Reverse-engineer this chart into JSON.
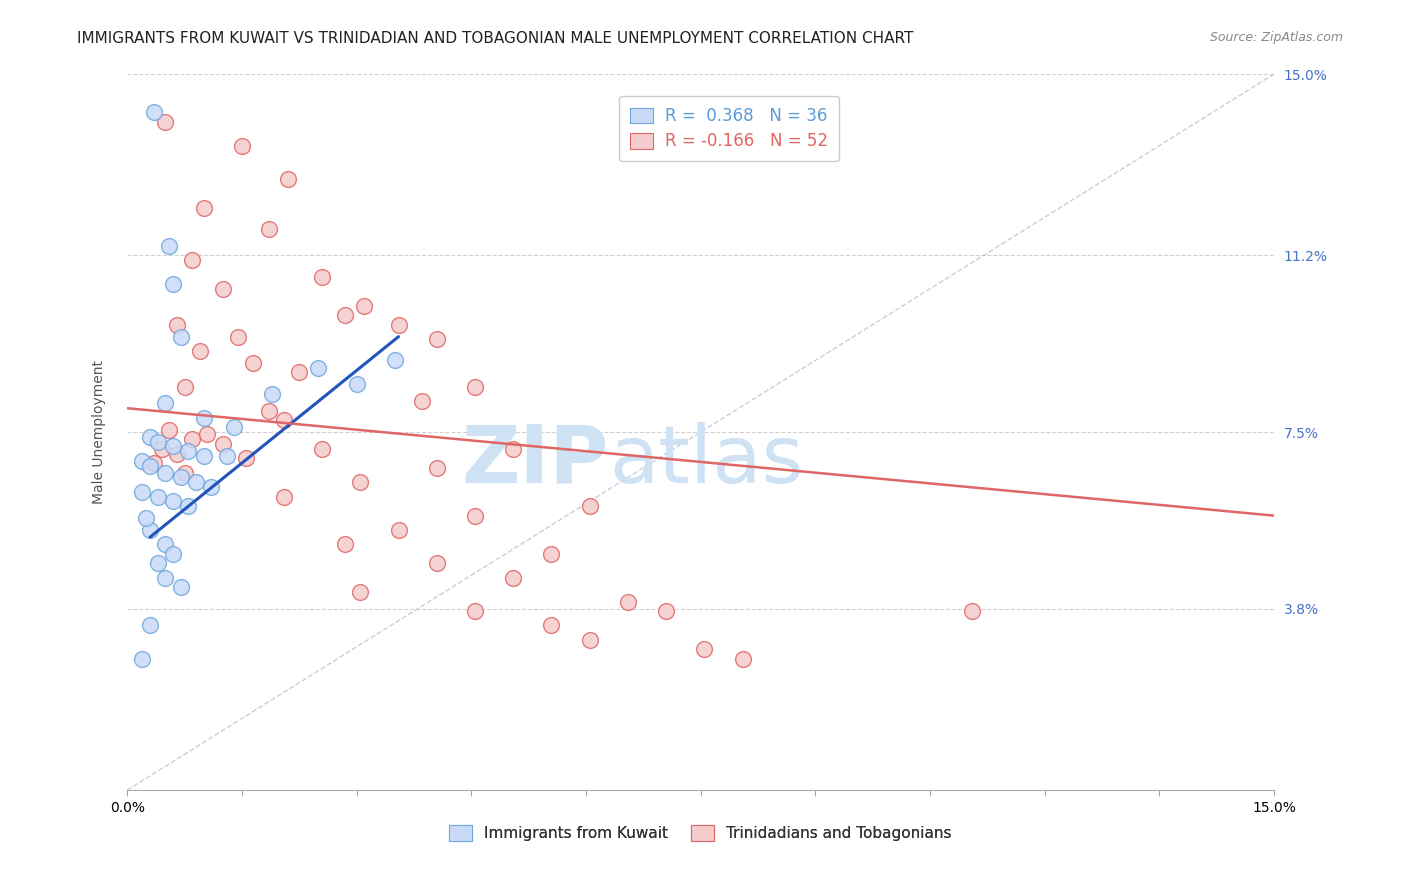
{
  "title": "IMMIGRANTS FROM KUWAIT VS TRINIDADIAN AND TOBAGONIAN MALE UNEMPLOYMENT CORRELATION CHART",
  "source": "Source: ZipAtlas.com",
  "ylabel": "Male Unemployment",
  "y_tick_values": [
    0.0,
    3.8,
    7.5,
    11.2,
    15.0
  ],
  "y_tick_labels": [
    "",
    "3.8%",
    "7.5%",
    "11.2%",
    "15.0%"
  ],
  "xlim": [
    0.0,
    15.0
  ],
  "ylim": [
    0.0,
    15.0
  ],
  "legend_entries": [
    {
      "label": "R =  0.368   N = 36",
      "color": "#5b9bd5"
    },
    {
      "label": "R = -0.166   N = 52",
      "color": "#e06666"
    }
  ],
  "legend_bottom": [
    {
      "label": "Immigrants from Kuwait",
      "color": "#a4c2f4"
    },
    {
      "label": "Trinidadians and Tobagonians",
      "color": "#ea9999"
    }
  ],
  "watermark_zip": "ZIP",
  "watermark_atlas": "atlas",
  "watermark_color": "#cfe2f3",
  "background_color": "#ffffff",
  "grid_color": "#cccccc",
  "kuwait_points": [
    [
      0.35,
      14.2
    ],
    [
      0.55,
      11.4
    ],
    [
      0.6,
      10.6
    ],
    [
      0.7,
      9.5
    ],
    [
      0.5,
      8.1
    ],
    [
      1.0,
      7.8
    ],
    [
      1.4,
      7.6
    ],
    [
      0.3,
      7.4
    ],
    [
      0.4,
      7.3
    ],
    [
      0.6,
      7.2
    ],
    [
      0.8,
      7.1
    ],
    [
      1.0,
      7.0
    ],
    [
      1.3,
      7.0
    ],
    [
      0.2,
      6.9
    ],
    [
      0.3,
      6.8
    ],
    [
      0.5,
      6.65
    ],
    [
      0.7,
      6.55
    ],
    [
      0.9,
      6.45
    ],
    [
      1.1,
      6.35
    ],
    [
      0.2,
      6.25
    ],
    [
      0.4,
      6.15
    ],
    [
      0.6,
      6.05
    ],
    [
      0.8,
      5.95
    ],
    [
      1.9,
      8.3
    ],
    [
      2.5,
      8.85
    ],
    [
      3.0,
      8.5
    ],
    [
      3.5,
      9.0
    ],
    [
      0.3,
      5.45
    ],
    [
      0.5,
      5.15
    ],
    [
      0.6,
      4.95
    ],
    [
      0.4,
      4.75
    ],
    [
      0.5,
      4.45
    ],
    [
      0.7,
      4.25
    ],
    [
      0.3,
      3.45
    ],
    [
      0.2,
      2.75
    ],
    [
      0.25,
      5.7
    ]
  ],
  "trinidadian_points": [
    [
      0.5,
      14.0
    ],
    [
      1.5,
      13.5
    ],
    [
      2.1,
      12.8
    ],
    [
      1.0,
      12.2
    ],
    [
      1.85,
      11.75
    ],
    [
      0.85,
      11.1
    ],
    [
      2.55,
      10.75
    ],
    [
      1.25,
      10.5
    ],
    [
      3.1,
      10.15
    ],
    [
      2.85,
      9.95
    ],
    [
      0.65,
      9.75
    ],
    [
      1.45,
      9.5
    ],
    [
      3.55,
      9.75
    ],
    [
      0.95,
      9.2
    ],
    [
      1.65,
      8.95
    ],
    [
      4.05,
      9.45
    ],
    [
      2.25,
      8.75
    ],
    [
      0.75,
      8.45
    ],
    [
      3.85,
      8.15
    ],
    [
      1.85,
      7.95
    ],
    [
      4.55,
      8.45
    ],
    [
      2.05,
      7.75
    ],
    [
      0.55,
      7.55
    ],
    [
      1.05,
      7.45
    ],
    [
      0.85,
      7.35
    ],
    [
      1.25,
      7.25
    ],
    [
      0.45,
      7.15
    ],
    [
      0.65,
      7.05
    ],
    [
      1.55,
      6.95
    ],
    [
      0.35,
      6.85
    ],
    [
      2.55,
      7.15
    ],
    [
      0.75,
      6.65
    ],
    [
      5.05,
      7.15
    ],
    [
      3.05,
      6.45
    ],
    [
      4.05,
      6.75
    ],
    [
      2.05,
      6.15
    ],
    [
      6.05,
      5.95
    ],
    [
      3.55,
      5.45
    ],
    [
      4.55,
      5.75
    ],
    [
      2.85,
      5.15
    ],
    [
      5.55,
      4.95
    ],
    [
      4.05,
      4.75
    ],
    [
      5.05,
      4.45
    ],
    [
      3.05,
      4.15
    ],
    [
      6.55,
      3.95
    ],
    [
      4.55,
      3.75
    ],
    [
      5.55,
      3.45
    ],
    [
      7.05,
      3.75
    ],
    [
      11.05,
      3.75
    ],
    [
      6.05,
      3.15
    ],
    [
      7.55,
      2.95
    ],
    [
      8.05,
      2.75
    ]
  ],
  "blue_line_x": [
    0.3,
    3.55
  ],
  "blue_line_y": [
    5.3,
    9.5
  ],
  "pink_line_x": [
    0.0,
    15.0
  ],
  "pink_line_y": [
    8.0,
    5.75
  ],
  "diag_line_color": "#aaaacc",
  "blue_line_color": "#2255bb",
  "pink_line_color": "#e06666",
  "title_fontsize": 11,
  "source_fontsize": 9,
  "axis_label_fontsize": 10,
  "tick_fontsize": 10,
  "legend_fontsize": 11
}
